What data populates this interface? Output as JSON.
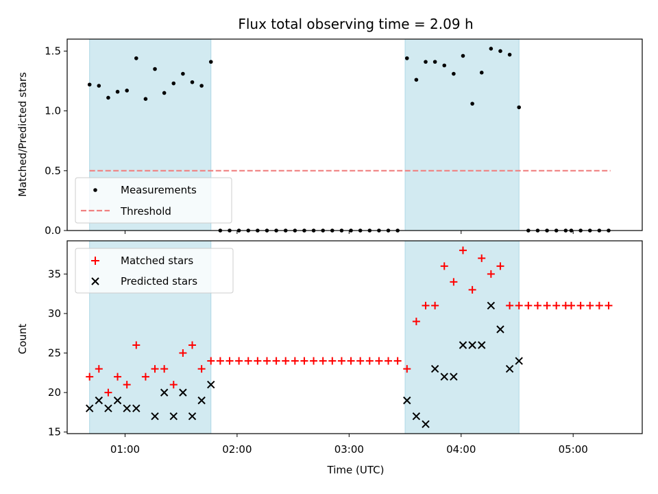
{
  "chart_data": {
    "title": "Flux total observing time = 2.09 h",
    "colors": {
      "measurements": "#000000",
      "threshold": "#f08080",
      "matched": "#ff0000",
      "predicted": "#000000",
      "span": "#add8e6"
    },
    "shaded_spans": [
      {
        "start": "00:41",
        "end": "01:46"
      },
      {
        "start": "03:30",
        "end": "04:31"
      }
    ],
    "x_axis": {
      "label": "Time (UTC)",
      "range": [
        "00:29",
        "05:37"
      ],
      "ticks": [
        "01:00",
        "02:00",
        "03:00",
        "04:00",
        "05:00"
      ]
    },
    "panels": [
      {
        "type": "scatter",
        "ylabel": "Matched/Predicted stars",
        "ylim": [
          0,
          1.6
        ],
        "yticks": [
          "0.0",
          "0.5",
          "1.0",
          "1.5"
        ],
        "legend": {
          "placement": "lower-left",
          "entries": [
            "Measurements",
            "Threshold"
          ]
        },
        "threshold": {
          "name": "Threshold",
          "value": 0.5,
          "x_start": "00:41",
          "x_end": "05:20"
        },
        "series": [
          {
            "name": "Measurements",
            "x": [
              "00:41",
              "00:46",
              "00:51",
              "00:56",
              "01:01",
              "01:06",
              "01:11",
              "01:16",
              "01:21",
              "01:26",
              "01:31",
              "01:36",
              "01:41",
              "01:46",
              "01:51",
              "01:56",
              "02:01",
              "02:06",
              "02:11",
              "02:16",
              "02:21",
              "02:26",
              "02:31",
              "02:36",
              "02:41",
              "02:46",
              "02:51",
              "02:56",
              "03:01",
              "03:06",
              "03:11",
              "03:16",
              "03:21",
              "03:26",
              "03:31",
              "03:36",
              "03:41",
              "03:46",
              "03:51",
              "03:56",
              "04:01",
              "04:06",
              "04:11",
              "04:16",
              "04:21",
              "04:26",
              "04:31",
              "04:36",
              "04:41",
              "04:46",
              "04:51",
              "04:56",
              "04:59",
              "05:04",
              "05:09",
              "05:14",
              "05:19"
            ],
            "y": [
              1.22,
              1.21,
              1.11,
              1.16,
              1.17,
              1.44,
              1.1,
              1.35,
              1.15,
              1.23,
              1.31,
              1.24,
              1.21,
              1.41,
              0,
              0,
              0,
              0,
              0,
              0,
              0,
              0,
              0,
              0,
              0,
              0,
              0,
              0,
              0,
              0,
              0,
              0,
              0,
              0,
              1.44,
              1.26,
              1.41,
              1.41,
              1.38,
              1.31,
              1.46,
              1.06,
              1.32,
              1.52,
              1.5,
              1.47,
              1.03,
              0,
              0,
              0,
              0,
              0,
              0,
              0,
              0,
              0,
              0
            ]
          }
        ]
      },
      {
        "type": "scatter",
        "ylabel": "Count",
        "ylim": [
          14.8,
          39.2
        ],
        "yticks": [
          "15",
          "20",
          "25",
          "30",
          "35"
        ],
        "legend": {
          "placement": "upper-left",
          "entries": [
            "Matched stars",
            "Predicted stars"
          ]
        },
        "series": [
          {
            "name": "Matched stars",
            "x": [
              "00:41",
              "00:46",
              "00:51",
              "00:56",
              "01:01",
              "01:06",
              "01:11",
              "01:16",
              "01:21",
              "01:26",
              "01:31",
              "01:36",
              "01:41",
              "01:46",
              "01:51",
              "01:56",
              "02:01",
              "02:06",
              "02:11",
              "02:16",
              "02:21",
              "02:26",
              "02:31",
              "02:36",
              "02:41",
              "02:46",
              "02:51",
              "02:56",
              "03:01",
              "03:06",
              "03:11",
              "03:16",
              "03:21",
              "03:26",
              "03:31",
              "03:36",
              "03:41",
              "03:46",
              "03:51",
              "03:56",
              "04:01",
              "04:06",
              "04:11",
              "04:16",
              "04:21",
              "04:26",
              "04:31",
              "04:36",
              "04:41",
              "04:46",
              "04:51",
              "04:56",
              "04:59",
              "05:04",
              "05:09",
              "05:14",
              "05:19"
            ],
            "y": [
              22,
              23,
              20,
              22,
              21,
              26,
              22,
              23,
              23,
              21,
              25,
              26,
              23,
              24,
              24,
              24,
              24,
              24,
              24,
              24,
              24,
              24,
              24,
              24,
              24,
              24,
              24,
              24,
              24,
              24,
              24,
              24,
              24,
              24,
              23,
              29,
              31,
              31,
              36,
              34,
              38,
              33,
              37,
              35,
              36,
              31,
              31,
              31,
              31,
              31,
              31,
              31,
              31,
              31,
              31,
              31,
              31
            ]
          },
          {
            "name": "Predicted stars",
            "x": [
              "00:41",
              "00:46",
              "00:51",
              "00:56",
              "01:01",
              "01:06",
              "01:16",
              "01:21",
              "01:26",
              "01:31",
              "01:36",
              "01:41",
              "01:46",
              "03:31",
              "03:36",
              "03:41",
              "03:46",
              "03:51",
              "03:56",
              "04:01",
              "04:06",
              "04:11",
              "04:16",
              "04:21",
              "04:26",
              "04:31"
            ],
            "y": [
              18,
              19,
              18,
              19,
              18,
              18,
              17,
              20,
              17,
              20,
              17,
              19,
              21,
              19,
              17,
              16,
              23,
              22,
              22,
              26,
              26,
              26,
              31,
              28,
              23,
              24
            ]
          }
        ]
      }
    ]
  }
}
